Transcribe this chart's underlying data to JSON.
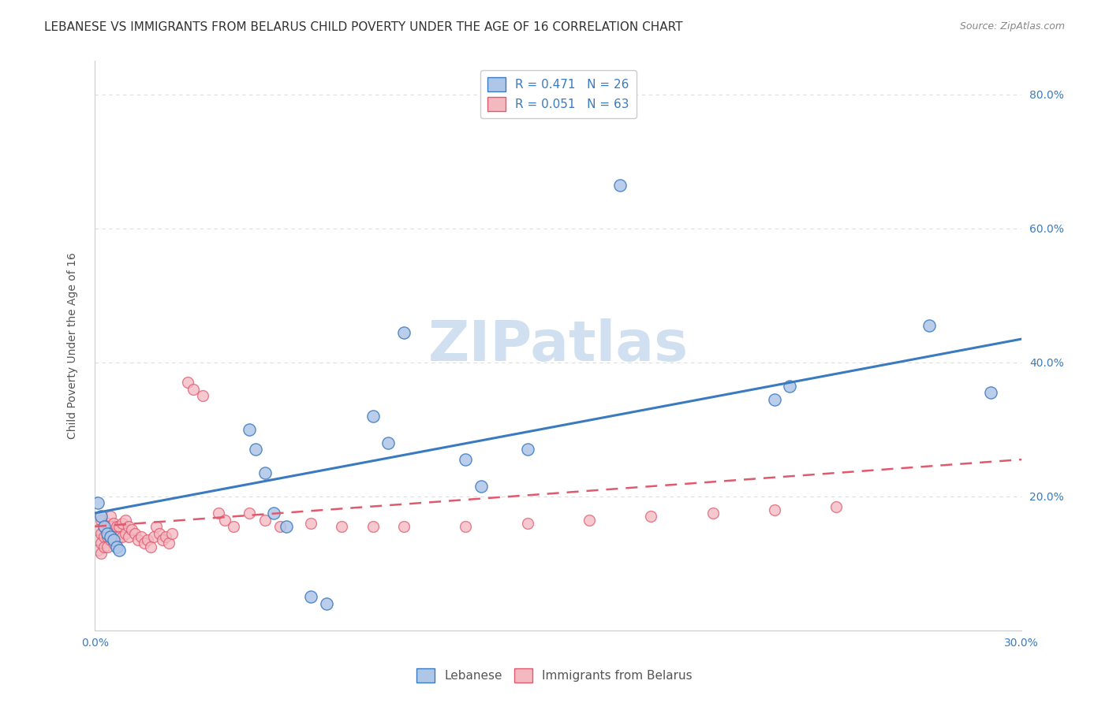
{
  "title": "LEBANESE VS IMMIGRANTS FROM BELARUS CHILD POVERTY UNDER THE AGE OF 16 CORRELATION CHART",
  "source": "Source: ZipAtlas.com",
  "xlabel": "",
  "ylabel": "Child Poverty Under the Age of 16",
  "xlim": [
    0.0,
    0.3
  ],
  "ylim": [
    0.0,
    0.85
  ],
  "xticks": [
    0.0,
    0.05,
    0.1,
    0.15,
    0.2,
    0.25,
    0.3
  ],
  "yticks": [
    0.0,
    0.2,
    0.4,
    0.6,
    0.8
  ],
  "ytick_labels": [
    "",
    "20.0%",
    "40.0%",
    "60.0%",
    "80.0%"
  ],
  "xtick_labels": [
    "0.0%",
    "",
    "",
    "",
    "",
    "",
    "30.0%"
  ],
  "legend_entries": [
    {
      "label": "R = 0.471   N = 26",
      "color": "#aec6e8"
    },
    {
      "label": "R = 0.051   N = 63",
      "color": "#f4b8c1"
    }
  ],
  "lebanese_scatter_x": [
    0.001,
    0.002,
    0.003,
    0.004,
    0.005,
    0.006,
    0.007,
    0.008,
    0.05,
    0.052,
    0.055,
    0.058,
    0.062,
    0.09,
    0.095,
    0.1,
    0.12,
    0.125,
    0.14,
    0.17,
    0.22,
    0.225,
    0.27,
    0.29,
    0.07,
    0.075
  ],
  "lebanese_scatter_y": [
    0.19,
    0.17,
    0.155,
    0.145,
    0.14,
    0.135,
    0.125,
    0.12,
    0.3,
    0.27,
    0.235,
    0.175,
    0.155,
    0.32,
    0.28,
    0.445,
    0.255,
    0.215,
    0.27,
    0.665,
    0.345,
    0.365,
    0.455,
    0.355,
    0.05,
    0.04
  ],
  "belarus_scatter_x": [
    0.001,
    0.001,
    0.001,
    0.002,
    0.002,
    0.002,
    0.002,
    0.003,
    0.003,
    0.003,
    0.004,
    0.004,
    0.004,
    0.005,
    0.005,
    0.005,
    0.006,
    0.006,
    0.006,
    0.007,
    0.007,
    0.008,
    0.008,
    0.009,
    0.009,
    0.01,
    0.01,
    0.011,
    0.011,
    0.012,
    0.013,
    0.014,
    0.015,
    0.016,
    0.017,
    0.018,
    0.019,
    0.02,
    0.021,
    0.022,
    0.023,
    0.024,
    0.025,
    0.03,
    0.032,
    0.035,
    0.04,
    0.042,
    0.045,
    0.05,
    0.055,
    0.06,
    0.07,
    0.08,
    0.09,
    0.1,
    0.12,
    0.14,
    0.16,
    0.18,
    0.2,
    0.22,
    0.24
  ],
  "belarus_scatter_y": [
    0.15,
    0.135,
    0.12,
    0.165,
    0.145,
    0.13,
    0.115,
    0.155,
    0.14,
    0.125,
    0.16,
    0.14,
    0.125,
    0.17,
    0.155,
    0.135,
    0.16,
    0.145,
    0.13,
    0.155,
    0.14,
    0.155,
    0.14,
    0.16,
    0.14,
    0.165,
    0.145,
    0.155,
    0.14,
    0.15,
    0.145,
    0.135,
    0.14,
    0.13,
    0.135,
    0.125,
    0.14,
    0.155,
    0.145,
    0.135,
    0.14,
    0.13,
    0.145,
    0.37,
    0.36,
    0.35,
    0.175,
    0.165,
    0.155,
    0.175,
    0.165,
    0.155,
    0.16,
    0.155,
    0.155,
    0.155,
    0.155,
    0.16,
    0.165,
    0.17,
    0.175,
    0.18,
    0.185
  ],
  "lebanese_line_x": [
    0.0,
    0.3
  ],
  "lebanese_line_y": [
    0.175,
    0.435
  ],
  "belarus_line_x": [
    0.0,
    0.3
  ],
  "belarus_line_y": [
    0.155,
    0.255
  ],
  "scatter_color_lebanese": "#aec6e8",
  "scatter_color_belarus": "#f4b8c1",
  "line_color_lebanese": "#3a7abf",
  "line_color_belarus": "#e05a6e",
  "background_color": "#ffffff",
  "grid_color": "#dddddd",
  "title_fontsize": 11,
  "axis_label_fontsize": 10,
  "tick_fontsize": 10,
  "watermark_text": "ZIPatlas",
  "watermark_color": "#d0e0f0",
  "watermark_fontsize": 52
}
